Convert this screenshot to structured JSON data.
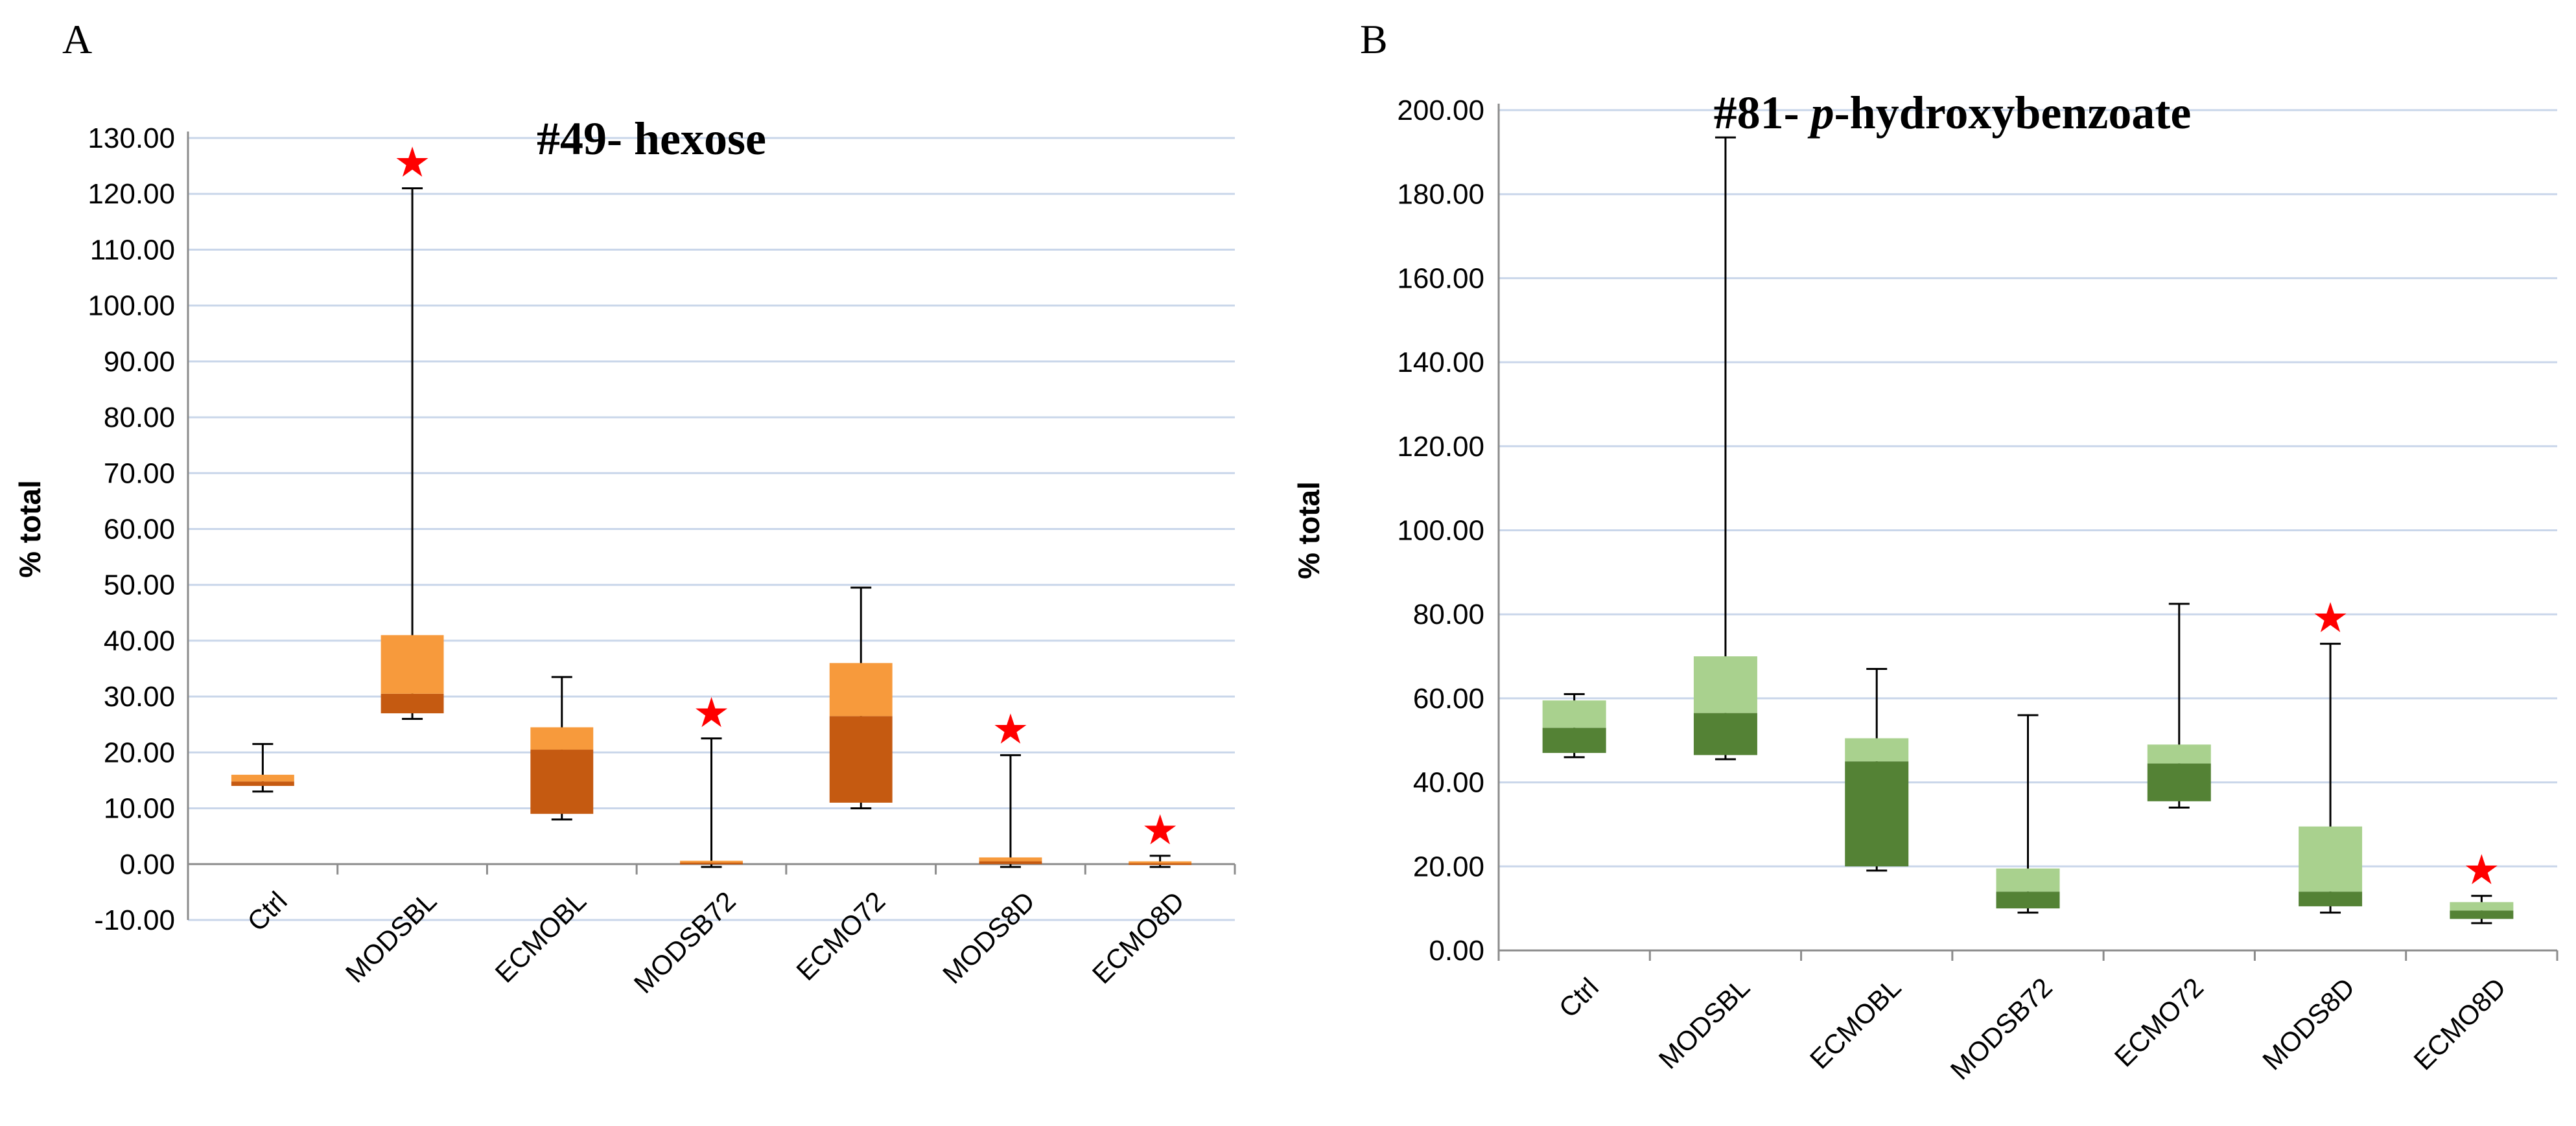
{
  "chart_data": [
    {
      "type": "box",
      "panel": "A",
      "title": "#49- hexose",
      "title_parts": [
        {
          "text": "#49- hexose",
          "italic": false
        }
      ],
      "ylabel": "% total",
      "ylim": [
        -10,
        130
      ],
      "ytick_step": 10,
      "ytick_labels": [
        "-10.00",
        "0.00",
        "10.00",
        "20.00",
        "30.00",
        "40.00",
        "50.00",
        "60.00",
        "70.00",
        "80.00",
        "90.00",
        "100.00",
        "110.00",
        "120.00",
        "130.00"
      ],
      "categories": [
        "Ctrl",
        "MODSBL",
        "ECMOBL",
        "MODSB72",
        "ECMO72",
        "MODS8D",
        "ECMO8D"
      ],
      "min": [
        13.0,
        26.0,
        8.0,
        -0.5,
        10.0,
        -0.5,
        -0.5
      ],
      "q1": [
        14.0,
        27.0,
        9.0,
        0.0,
        11.0,
        0.0,
        0.0
      ],
      "median": [
        14.8,
        30.5,
        20.5,
        0.3,
        26.5,
        0.5,
        0.2
      ],
      "q3": [
        16.0,
        41.0,
        24.5,
        0.6,
        36.0,
        1.2,
        0.5
      ],
      "max": [
        21.5,
        121.0,
        33.5,
        22.5,
        49.5,
        19.5,
        1.5
      ],
      "significant": [
        false,
        true,
        false,
        true,
        false,
        true,
        true
      ],
      "colors": {
        "lower_box": "#c55a11",
        "upper_box": "#f79a3c",
        "grid": "#c9d6ea",
        "marker": "#ff0000"
      }
    },
    {
      "type": "box",
      "panel": "B",
      "title": "#81- p-hydroxybenzoate",
      "title_parts": [
        {
          "text": "#81- ",
          "italic": false
        },
        {
          "text": "p",
          "italic": true
        },
        {
          "text": "-hydroxybenzoate",
          "italic": false
        }
      ],
      "ylabel": "% total",
      "ylim": [
        0,
        200
      ],
      "ytick_step": 20,
      "ytick_labels": [
        "0.00",
        "20.00",
        "40.00",
        "60.00",
        "80.00",
        "100.00",
        "120.00",
        "140.00",
        "160.00",
        "180.00",
        "200.00"
      ],
      "categories": [
        "Ctrl",
        "MODSBL",
        "ECMOBL",
        "MODSB72",
        "ECMO72",
        "MODS8D",
        "ECMO8D"
      ],
      "min": [
        46.0,
        45.5,
        19.0,
        9.0,
        34.0,
        9.0,
        6.5
      ],
      "q1": [
        47.0,
        46.5,
        20.0,
        10.0,
        35.5,
        10.5,
        7.5
      ],
      "median": [
        53.0,
        56.5,
        45.0,
        14.0,
        44.5,
        14.0,
        9.5
      ],
      "q3": [
        59.5,
        70.0,
        50.5,
        19.5,
        49.0,
        29.5,
        11.5
      ],
      "max": [
        61.0,
        193.5,
        67.0,
        56.0,
        82.5,
        73.0,
        13.0
      ],
      "significant": [
        false,
        false,
        false,
        false,
        false,
        true,
        true
      ],
      "colors": {
        "lower_box": "#548235",
        "upper_box": "#a9d18e",
        "grid": "#c9d6ea",
        "marker": "#ff0000"
      }
    }
  ],
  "panels": {
    "a_label": "A",
    "b_label": "B"
  },
  "marker_glyph": "★"
}
